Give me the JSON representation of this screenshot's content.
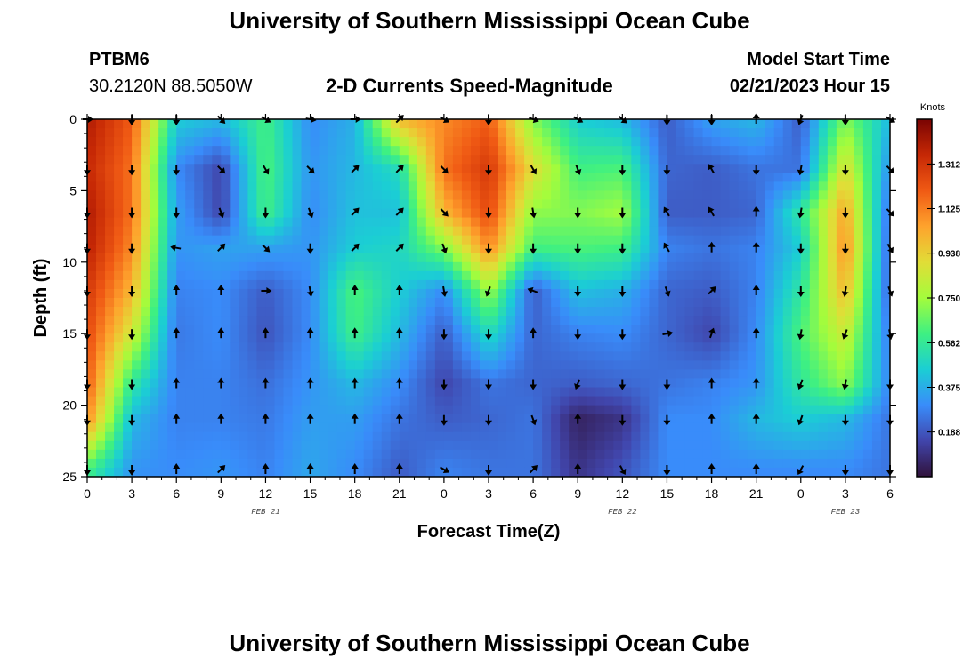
{
  "page": {
    "title": "University of Southern Mississippi Ocean Cube",
    "station": "PTBM6",
    "coordinates": "30.2120N  88.5050W",
    "subtitle": "2-D Currents Speed-Magnitude",
    "model_start_label": "Model Start Time",
    "model_start_value": "02/21/2023 Hour 15",
    "footer_title": "University of Southern Mississippi Ocean Cube"
  },
  "chart_data": {
    "type": "heatmap",
    "title": "2-D Currents Speed-Magnitude",
    "xlabel": "Forecast Time(Z)",
    "ylabel": "Depth (ft)",
    "x_tick_labels": [
      "0",
      "3",
      "6",
      "9",
      "12",
      "15",
      "18",
      "21",
      "0",
      "3",
      "6",
      "9",
      "12",
      "15",
      "18",
      "21",
      "0",
      "3",
      "6"
    ],
    "x_range_hours": [
      0,
      54
    ],
    "day_labels": [
      {
        "text": "FEB 21",
        "hour": 12
      },
      {
        "text": "FEB 22",
        "hour": 36
      },
      {
        "text": "FEB 23",
        "hour": 51
      }
    ],
    "y_ticks": [
      0,
      5,
      10,
      15,
      20,
      25
    ],
    "y_range": [
      0,
      25
    ],
    "y_inverted": true,
    "colorbar": {
      "title": "Knots",
      "ticks": [
        "1.312",
        "1.125",
        "0.938",
        "0.750",
        "0.562",
        "0.375",
        "0.188"
      ],
      "tick_values": [
        1.312,
        1.125,
        0.938,
        0.75,
        0.562,
        0.375,
        0.188
      ],
      "range": [
        0,
        1.5
      ]
    },
    "grid_hours": [
      0,
      3,
      6,
      9,
      12,
      15,
      18,
      21,
      24,
      27,
      30,
      33,
      36,
      39,
      42,
      45,
      48,
      51,
      54
    ],
    "grid_depths": [
      0,
      3.5,
      6.5,
      9,
      12,
      15,
      18.5,
      21,
      24.5
    ],
    "speed_knots": [
      [
        1.4,
        1.35,
        1.4,
        1.38,
        1.3,
        1.25,
        1.2,
        1.1,
        0.6
      ],
      [
        1.2,
        1.15,
        1.15,
        1.1,
        1.0,
        0.85,
        0.55,
        0.4,
        0.32
      ],
      [
        0.45,
        0.3,
        0.35,
        0.32,
        0.28,
        0.26,
        0.28,
        0.28,
        0.3
      ],
      [
        0.4,
        0.15,
        0.15,
        0.35,
        0.3,
        0.3,
        0.28,
        0.28,
        0.32
      ],
      [
        0.6,
        0.62,
        0.6,
        0.35,
        0.2,
        0.18,
        0.24,
        0.26,
        0.28
      ],
      [
        0.3,
        0.32,
        0.3,
        0.32,
        0.3,
        0.3,
        0.32,
        0.34,
        0.36
      ],
      [
        0.38,
        0.4,
        0.42,
        0.45,
        0.62,
        0.6,
        0.4,
        0.34,
        0.3
      ],
      [
        1.0,
        0.5,
        0.42,
        0.48,
        0.45,
        0.4,
        0.3,
        0.25,
        0.2
      ],
      [
        1.1,
        1.15,
        1.0,
        0.7,
        0.3,
        0.2,
        0.15,
        0.2,
        0.28
      ],
      [
        1.2,
        1.3,
        1.25,
        1.1,
        0.75,
        0.5,
        0.25,
        0.22,
        0.25
      ],
      [
        0.7,
        0.9,
        0.72,
        0.6,
        0.2,
        0.22,
        0.22,
        0.25,
        0.25
      ],
      [
        0.45,
        0.6,
        0.7,
        0.62,
        0.42,
        0.28,
        0.2,
        0.05,
        0.1
      ],
      [
        0.4,
        0.62,
        0.75,
        0.6,
        0.38,
        0.3,
        0.22,
        0.1,
        0.18
      ],
      [
        0.2,
        0.22,
        0.2,
        0.28,
        0.22,
        0.22,
        0.25,
        0.3,
        0.3
      ],
      [
        0.35,
        0.2,
        0.2,
        0.25,
        0.2,
        0.15,
        0.28,
        0.3,
        0.3
      ],
      [
        0.4,
        0.25,
        0.22,
        0.28,
        0.28,
        0.3,
        0.32,
        0.4,
        0.3
      ],
      [
        0.2,
        0.25,
        0.55,
        0.45,
        0.55,
        0.62,
        0.55,
        0.45,
        0.3
      ],
      [
        0.7,
        0.9,
        1.05,
        1.1,
        1.0,
        0.85,
        0.72,
        0.4,
        0.3
      ],
      [
        0.4,
        0.3,
        0.22,
        0.2,
        0.2,
        0.25,
        0.28,
        0.25,
        0.25
      ]
    ],
    "arrow_direction_deg": [
      [
        90,
        180,
        180,
        180,
        180,
        180,
        180,
        180,
        180
      ],
      [
        180,
        180,
        180,
        180,
        180,
        180,
        180,
        180,
        180
      ],
      [
        180,
        180,
        180,
        280,
        0,
        0,
        0,
        0,
        0
      ],
      [
        135,
        135,
        160,
        45,
        0,
        0,
        0,
        0,
        45
      ],
      [
        120,
        150,
        180,
        135,
        90,
        0,
        0,
        0,
        0
      ],
      [
        100,
        135,
        160,
        180,
        170,
        0,
        0,
        0,
        0
      ],
      [
        90,
        45,
        45,
        45,
        0,
        0,
        0,
        0,
        0
      ],
      [
        45,
        45,
        45,
        45,
        0,
        0,
        0,
        0,
        0
      ],
      [
        120,
        135,
        135,
        160,
        170,
        180,
        180,
        180,
        120
      ],
      [
        180,
        180,
        180,
        180,
        200,
        180,
        180,
        180,
        180
      ],
      [
        110,
        150,
        170,
        180,
        290,
        0,
        180,
        160,
        45
      ],
      [
        120,
        160,
        180,
        180,
        180,
        180,
        200,
        0,
        0
      ],
      [
        130,
        180,
        180,
        180,
        180,
        180,
        180,
        180,
        150
      ],
      [
        180,
        180,
        330,
        330,
        160,
        80,
        180,
        180,
        180
      ],
      [
        180,
        330,
        330,
        0,
        45,
        20,
        0,
        0,
        0
      ],
      [
        0,
        180,
        0,
        0,
        0,
        0,
        0,
        0,
        0
      ],
      [
        200,
        190,
        190,
        180,
        180,
        190,
        200,
        200,
        210
      ],
      [
        180,
        180,
        180,
        180,
        190,
        200,
        190,
        180,
        180
      ],
      [
        120,
        135,
        135,
        150,
        160,
        170,
        180,
        180,
        180
      ]
    ]
  }
}
